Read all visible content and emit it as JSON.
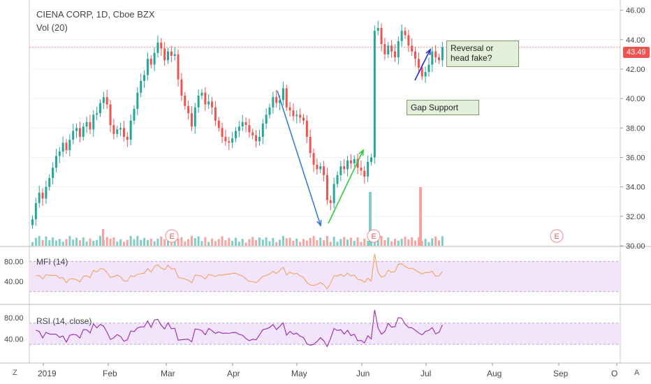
{
  "header": {
    "title": "CIENA CORP, 1D, Cboe BZX",
    "volume_label": "Vol (20)"
  },
  "panels": {
    "mfi_label": "MFI (14)",
    "rsi_label": "RSI (14, close)"
  },
  "annotations": {
    "reversal": "Reversal or\nhead fake?",
    "gap_support": "Gap Support"
  },
  "corner": {
    "left": "Z",
    "right": "A"
  },
  "earnings_marker": "E",
  "colors": {
    "up": "#26a69a",
    "down": "#ef5350",
    "vol_up": "#7fcdc4",
    "vol_down": "#f4a3a1",
    "indicator_band": "#f1e4fb",
    "mfi_line": "#f0a35e",
    "rsi_line": "#9c27b0",
    "arrow_blue": "#3b7bd6",
    "arrow_green": "#2ecc40",
    "arrow_navy": "#2c2cc8",
    "hline": "#f28b8b"
  },
  "chart_data": {
    "type": "candlestick",
    "title": "CIENA CORP, 1D, Cboe BZX",
    "x_ticks": [
      "2019",
      "Feb",
      "Mar",
      "Apr",
      "May",
      "Jun",
      "Jul",
      "Aug",
      "Sep",
      "O"
    ],
    "price_axis": {
      "ylim": [
        30,
        46.6
      ],
      "ticks": [
        "30.00",
        "32.00",
        "34.00",
        "36.00",
        "38.00",
        "40.00",
        "42.00",
        "44.00",
        "46.00"
      ]
    },
    "last_price": "43.49",
    "horizontal_line": 43.49,
    "closes": [
      31.8,
      32.9,
      33.6,
      33.2,
      34.0,
      34.6,
      35.3,
      36.1,
      36.4,
      37.0,
      36.5,
      37.2,
      37.8,
      38.0,
      37.4,
      38.1,
      38.4,
      37.9,
      38.9,
      39.0,
      39.7,
      40.1,
      39.6,
      38.2,
      37.6,
      37.9,
      38.0,
      37.4,
      37.2,
      38.5,
      39.3,
      40.4,
      41.2,
      41.6,
      42.7,
      42.3,
      43.1,
      43.8,
      43.4,
      42.6,
      43.2,
      42.9,
      43.0,
      41.3,
      40.2,
      39.5,
      39.0,
      38.1,
      39.4,
      40.2,
      40.4,
      39.6,
      39.8,
      39.4,
      38.5,
      38.0,
      37.4,
      37.1,
      37.0,
      37.3,
      37.8,
      38.1,
      38.4,
      38.2,
      37.7,
      37.5,
      37.1,
      37.4,
      38.3,
      38.9,
      39.4,
      40.1,
      39.7,
      39.9,
      40.7,
      39.4,
      39.2,
      38.8,
      38.9,
      38.7,
      38.5,
      37.4,
      36.3,
      35.5,
      35.2,
      35.4,
      34.8,
      33.1,
      32.9,
      34.2,
      34.8,
      35.4,
      35.2,
      35.8,
      35.6,
      35.9,
      35.3,
      35.1,
      34.7,
      35.7,
      36.0,
      44.6,
      44.8,
      43.7,
      43.0,
      43.6,
      43.2,
      42.8,
      43.9,
      44.6,
      44.3,
      43.6,
      43.2,
      42.7,
      42.1,
      41.5,
      41.8,
      42.3,
      43.2,
      42.8,
      42.6,
      43.49
    ],
    "mfi": {
      "ticks": [
        "80.00",
        "40.00"
      ],
      "band": [
        20,
        80
      ]
    },
    "rsi": {
      "ticks": [
        "80.00",
        "40.00"
      ],
      "band": [
        30,
        70
      ]
    }
  }
}
